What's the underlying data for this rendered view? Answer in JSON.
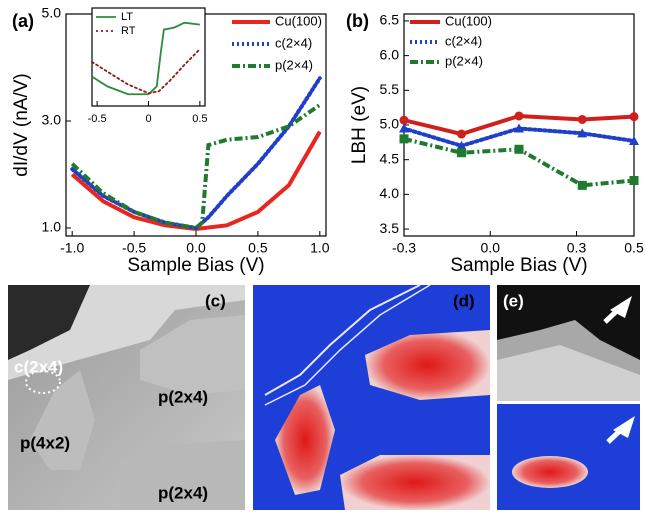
{
  "chart_data": [
    {
      "type": "line",
      "panel_label": "(a)",
      "xlabel": "Sample Bias (V)",
      "ylabel": "dI/dV (nA/V)",
      "xlim": [
        -1.05,
        1.05
      ],
      "ylim": [
        0.85,
        5.0
      ],
      "xticks": [
        {
          "value": -1,
          "label": "-1.0"
        },
        {
          "value": -0.5,
          "label": "-0.5"
        },
        {
          "value": 0,
          "label": "0.0"
        },
        {
          "value": 0.5,
          "label": "0.5"
        },
        {
          "value": 1,
          "label": "1.0"
        }
      ],
      "yticks": [
        {
          "value": 1,
          "label": "1.0"
        },
        {
          "value": 3,
          "label": "3.0"
        },
        {
          "value": 5,
          "label": "5.0"
        }
      ],
      "series": [
        {
          "name": "Cu(100)",
          "color": "#e8261f",
          "style": "solid",
          "x": [
            -1.0,
            -0.75,
            -0.5,
            -0.25,
            0,
            0.25,
            0.5,
            0.75,
            1.0
          ],
          "values": [
            2.0,
            1.5,
            1.2,
            1.05,
            0.98,
            1.05,
            1.3,
            1.8,
            2.8
          ]
        },
        {
          "name": "c(2×4)",
          "color": "#1f3fc8",
          "style": "dotted",
          "x": [
            -1.0,
            -0.75,
            -0.5,
            -0.25,
            0,
            0.1,
            0.25,
            0.5,
            0.75,
            1.0
          ],
          "values": [
            2.1,
            1.6,
            1.3,
            1.1,
            1.0,
            1.2,
            1.6,
            2.2,
            2.9,
            3.8
          ]
        },
        {
          "name": "p(2×4)",
          "color": "#1f7a2e",
          "style": "dashdot",
          "x": [
            -1.0,
            -0.75,
            -0.5,
            -0.25,
            0,
            0.05,
            0.1,
            0.25,
            0.5,
            0.75,
            1.0
          ],
          "values": [
            2.2,
            1.65,
            1.3,
            1.1,
            1.0,
            1.1,
            2.55,
            2.65,
            2.7,
            2.9,
            3.3
          ]
        }
      ]
    },
    {
      "type": "line",
      "xlim": [
        -0.55,
        0.55
      ],
      "ylim": [
        0,
        1
      ],
      "xticks": [
        -0.5,
        0,
        0.5
      ],
      "series": [
        {
          "name": "LT",
          "color": "#2e8b3e",
          "style": "solid",
          "x": [
            -0.55,
            -0.4,
            -0.2,
            0,
            0.08,
            0.12,
            0.15,
            0.25,
            0.35,
            0.5
          ],
          "values": [
            0.3,
            0.2,
            0.12,
            0.12,
            0.2,
            0.55,
            0.78,
            0.8,
            0.85,
            0.83
          ]
        },
        {
          "name": "RT",
          "color": "#8b1a1a",
          "style": "dotted",
          "x": [
            -0.55,
            -0.4,
            -0.2,
            0,
            0.1,
            0.2,
            0.35,
            0.5
          ],
          "values": [
            0.45,
            0.35,
            0.22,
            0.13,
            0.15,
            0.25,
            0.42,
            0.58
          ]
        }
      ]
    },
    {
      "type": "line",
      "panel_label": "(b)",
      "xlabel": "Sample Bias (V)",
      "ylabel": "LBH (eV)",
      "xlim": [
        -0.3,
        0.5
      ],
      "ylim": [
        3.4,
        6.6
      ],
      "xticks": [
        -0.3,
        {
          "value": 0,
          "label": "0.0"
        },
        0.3,
        0.5
      ],
      "yticks": [
        3.5,
        {
          "value": 4,
          "label": "4.0"
        },
        4.5,
        {
          "value": 5,
          "label": "5.0"
        },
        5.5,
        {
          "value": 6,
          "label": "6.0"
        },
        6.5
      ],
      "series": [
        {
          "name": "Cu(100)",
          "color": "#d0201c",
          "style": "solid",
          "marker": "circle",
          "x": [
            -0.3,
            -0.1,
            0.1,
            0.32,
            0.5
          ],
          "values": [
            5.07,
            4.87,
            5.13,
            5.08,
            5.12
          ]
        },
        {
          "name": "c(2×4)",
          "color": "#1f3fc8",
          "style": "dotted",
          "marker": "triangle",
          "x": [
            -0.3,
            -0.1,
            0.1,
            0.32,
            0.5
          ],
          "values": [
            4.95,
            4.7,
            4.95,
            4.88,
            4.77
          ]
        },
        {
          "name": "p(2×4)",
          "color": "#1f7a2e",
          "style": "dashdot",
          "marker": "square",
          "x": [
            -0.3,
            -0.1,
            0.1,
            0.32,
            0.5
          ],
          "values": [
            4.8,
            4.6,
            4.65,
            4.13,
            4.2
          ]
        }
      ]
    }
  ],
  "images": [
    {
      "label": "(c)",
      "annotations": [
        "c(2x4)",
        "p(2x4)",
        "p(4x2)",
        "p(2x4)"
      ]
    },
    {
      "label": "(d)"
    },
    {
      "label": "(e)"
    }
  ]
}
